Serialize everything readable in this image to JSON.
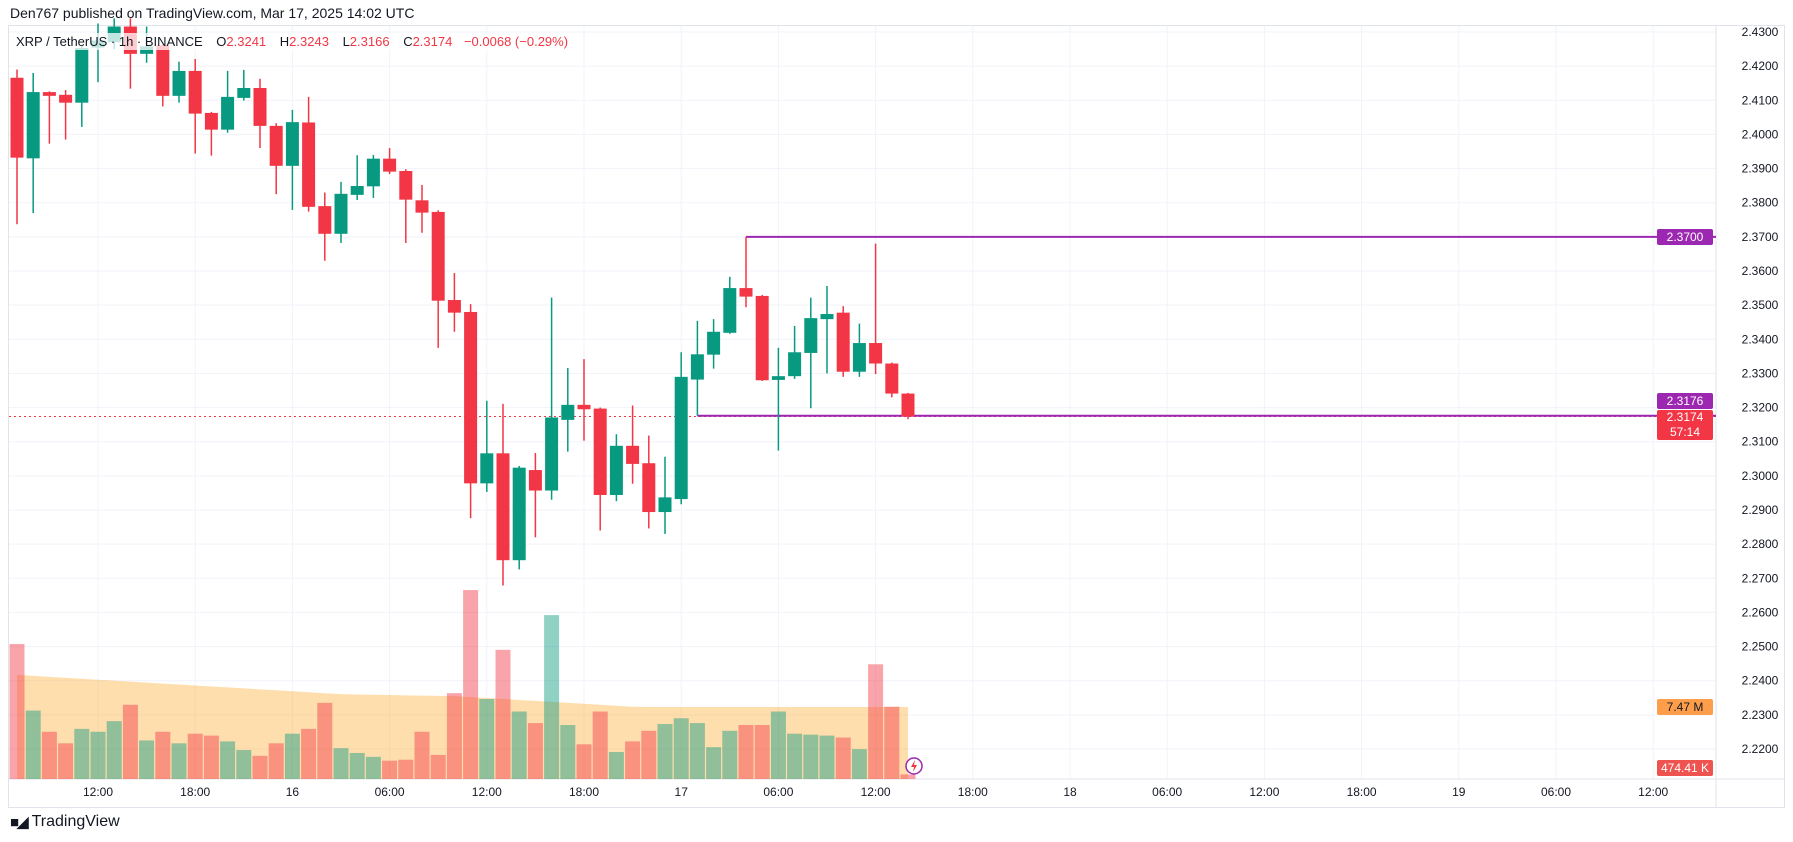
{
  "header": {
    "published": "Den767 published on TradingView.com, Mar 17, 2025 14:02 UTC"
  },
  "legend": {
    "symbol": "XRP / TetherUS · 1h · BINANCE",
    "o_label": "O",
    "o": "2.3241",
    "h_label": "H",
    "h": "2.3243",
    "l_label": "L",
    "l": "2.3166",
    "c_label": "C",
    "c": "2.3174",
    "change": "−0.0068 (−0.29%)"
  },
  "price_tags": {
    "resistance": "2.3700",
    "support": "2.3176",
    "last_price": "2.3174",
    "countdown": "57:14",
    "volume_ma": "7.47 M",
    "volume_last": "474.41 K"
  },
  "footer": {
    "brand": "TradingView"
  },
  "colors": {
    "up": "#089981",
    "down": "#f23645",
    "line": "#9c27b0",
    "volume_ma": "#ff9800"
  },
  "chart_data": {
    "type": "candlestick",
    "interval": "1h",
    "start": "Mar 15 07:00",
    "ylim": [
      2.2,
      2.435
    ],
    "y_ticks": [
      "2.4300",
      "2.4200",
      "2.4100",
      "2.4000",
      "2.3900",
      "2.3800",
      "2.3700",
      "2.3600",
      "2.3500",
      "2.3400",
      "2.3300",
      "2.3200",
      "2.3100",
      "2.3000",
      "2.2900",
      "2.2800",
      "2.2700",
      "2.2600",
      "2.2500",
      "2.2400",
      "2.2300",
      "2.2200"
    ],
    "x_ticks": [
      {
        "label": "12:00",
        "hour": 5
      },
      {
        "label": "18:00",
        "hour": 11
      },
      {
        "label": "16",
        "hour": 17
      },
      {
        "label": "06:00",
        "hour": 23
      },
      {
        "label": "12:00",
        "hour": 29
      },
      {
        "label": "18:00",
        "hour": 35
      },
      {
        "label": "17",
        "hour": 41
      },
      {
        "label": "06:00",
        "hour": 47
      },
      {
        "label": "12:00",
        "hour": 53
      },
      {
        "label": "18:00",
        "hour": 59
      },
      {
        "label": "18",
        "hour": 65
      },
      {
        "label": "06:00",
        "hour": 71
      },
      {
        "label": "12:00",
        "hour": 77
      },
      {
        "label": "18:00",
        "hour": 83
      },
      {
        "label": "19",
        "hour": 89
      },
      {
        "label": "06:00",
        "hour": 95
      },
      {
        "label": "12:00",
        "hour": 101
      }
    ],
    "horizontal_lines": [
      {
        "price": 2.37,
        "from_candle": 45
      },
      {
        "price": 2.3176,
        "from_candle": 42
      }
    ],
    "last_price": 2.3174,
    "candles": [
      [
        2.4166,
        2.419,
        2.3737,
        2.3932
      ],
      [
        2.393,
        2.418,
        2.377,
        2.4124
      ],
      [
        2.4124,
        2.4126,
        2.3973,
        2.4113
      ],
      [
        2.4116,
        2.413,
        2.3985,
        2.4093
      ],
      [
        2.4093,
        2.426,
        2.4022,
        2.4253
      ],
      [
        2.4254,
        2.4325,
        2.4153,
        2.4275
      ],
      [
        2.427,
        2.434,
        2.425,
        2.4316
      ],
      [
        2.4316,
        2.434,
        2.4134,
        2.4236
      ],
      [
        2.4236,
        2.4316,
        2.421,
        2.4258
      ],
      [
        2.4261,
        2.4265,
        2.4082,
        2.4113
      ],
      [
        2.4113,
        2.4213,
        2.4093,
        2.4186
      ],
      [
        2.4186,
        2.4221,
        2.3944,
        2.4061
      ],
      [
        2.4063,
        2.4066,
        2.3938,
        2.4014
      ],
      [
        2.4014,
        2.4186,
        2.4005,
        2.411
      ],
      [
        2.4107,
        2.4189,
        2.4099,
        2.4136
      ],
      [
        2.4136,
        2.4163,
        2.396,
        2.4025
      ],
      [
        2.4025,
        2.4033,
        2.3825,
        2.3908
      ],
      [
        2.3908,
        2.4072,
        2.3779,
        2.4036
      ],
      [
        2.4035,
        2.411,
        2.3774,
        2.3788
      ],
      [
        2.379,
        2.383,
        2.363,
        2.3709
      ],
      [
        2.3709,
        2.3861,
        2.3682,
        2.3826
      ],
      [
        2.3823,
        2.3939,
        2.3808,
        2.3849
      ],
      [
        2.3848,
        2.394,
        2.3814,
        2.3929
      ],
      [
        2.3929,
        2.396,
        2.3884,
        2.3891
      ],
      [
        2.3893,
        2.3898,
        2.3682,
        2.3809
      ],
      [
        2.3807,
        2.3852,
        2.3712,
        2.3771
      ],
      [
        2.3773,
        2.3778,
        2.3375,
        2.3513
      ],
      [
        2.3515,
        2.3594,
        2.3422,
        2.3478
      ],
      [
        2.348,
        2.3503,
        2.2876,
        2.2978
      ],
      [
        2.2978,
        2.322,
        2.2953,
        2.3066
      ],
      [
        2.3066,
        2.3211,
        2.2679,
        2.2753
      ],
      [
        2.2753,
        2.3029,
        2.2726,
        2.3024
      ],
      [
        2.3017,
        2.3067,
        2.282,
        2.2957
      ],
      [
        2.2957,
        2.3522,
        2.293,
        2.3171
      ],
      [
        2.3164,
        2.3316,
        2.3071,
        2.3208
      ],
      [
        2.3208,
        2.3342,
        2.3103,
        2.3195
      ],
      [
        2.3197,
        2.32,
        2.284,
        2.2944
      ],
      [
        2.2944,
        2.3122,
        2.2926,
        2.3088
      ],
      [
        2.3088,
        2.3206,
        2.2977,
        2.3035
      ],
      [
        2.3037,
        2.3118,
        2.2846,
        2.2894
      ],
      [
        2.2894,
        2.3056,
        2.283,
        2.2937
      ],
      [
        2.2932,
        2.3362,
        2.2917,
        2.329
      ],
      [
        2.3282,
        2.3454,
        2.3176,
        2.3356
      ],
      [
        2.3355,
        2.3459,
        2.3314,
        2.3422
      ],
      [
        2.3419,
        2.3583,
        2.3416,
        2.355
      ],
      [
        2.355,
        2.37,
        2.3494,
        2.3525
      ],
      [
        2.3527,
        2.353,
        2.3278,
        2.328
      ],
      [
        2.3281,
        2.3375,
        2.3074,
        2.3292
      ],
      [
        2.3292,
        2.3439,
        2.3284,
        2.3362
      ],
      [
        2.336,
        2.3522,
        2.3198,
        2.3462
      ],
      [
        2.3459,
        2.3556,
        2.33,
        2.3474
      ],
      [
        2.3478,
        2.3497,
        2.329,
        2.3305
      ],
      [
        2.3305,
        2.3446,
        2.329,
        2.3389
      ],
      [
        2.3389,
        2.368,
        2.3298,
        2.3329
      ],
      [
        2.3329,
        2.3332,
        2.323,
        2.3241
      ],
      [
        2.3241,
        2.3243,
        2.3166,
        2.3174
      ]
    ],
    "candle_fields": [
      "open",
      "high",
      "low",
      "close"
    ],
    "volume_millions": [
      14.0,
      7.1,
      4.9,
      3.7,
      5.2,
      4.9,
      6.0,
      7.7,
      4.0,
      4.9,
      3.7,
      4.7,
      4.5,
      3.9,
      3.0,
      2.4,
      3.7,
      4.7,
      5.2,
      7.9,
      3.2,
      2.7,
      2.3,
      1.9,
      2.0,
      4.9,
      2.5,
      8.9,
      19.6,
      8.3,
      13.4,
      7.0,
      5.8,
      17.0,
      5.6,
      3.6,
      7.0,
      2.8,
      3.9,
      5.0,
      5.7,
      6.3,
      5.8,
      3.3,
      5.0,
      5.6,
      5.6,
      7.0,
      4.7,
      4.6,
      4.5,
      4.3,
      3.1,
      11.9,
      7.5,
      0.47441
    ],
    "volume_ma_millions": [
      10.8,
      10.7,
      10.6,
      10.5,
      10.4,
      10.3,
      10.2,
      10.1,
      10.0,
      9.9,
      9.8,
      9.7,
      9.6,
      9.5,
      9.4,
      9.3,
      9.2,
      9.1,
      9.0,
      8.9,
      8.8,
      8.77,
      8.74,
      8.71,
      8.68,
      8.65,
      8.62,
      8.6,
      8.5,
      8.4,
      8.3,
      8.2,
      8.1,
      8.0,
      7.9,
      7.8,
      7.7,
      7.6,
      7.5,
      7.47,
      7.47,
      7.47,
      7.47,
      7.47,
      7.47,
      7.47,
      7.47,
      7.47,
      7.47,
      7.47,
      7.47,
      7.47,
      7.47,
      7.47,
      7.47,
      7.47
    ]
  }
}
